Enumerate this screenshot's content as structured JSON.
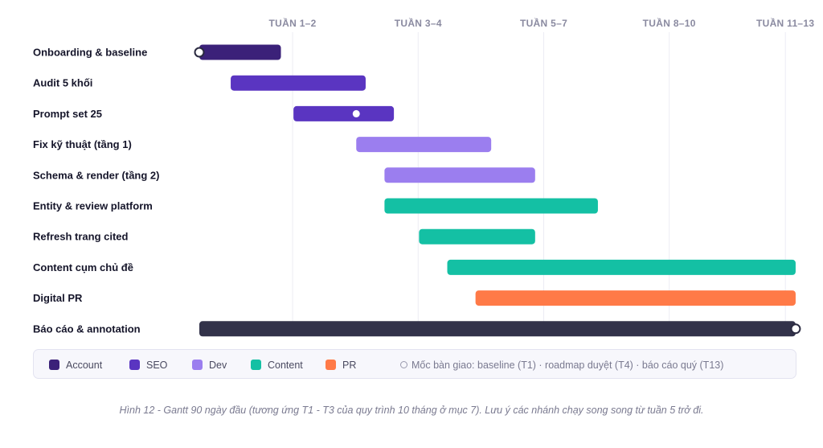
{
  "chart_data": {
    "type": "gantt",
    "x_unit": "week",
    "xlim": [
      0,
      13.2
    ],
    "ticks": [
      {
        "label": "TUẦN 1–2",
        "week": 1
      },
      {
        "label": "TUẦN 3–4",
        "week": 3
      },
      {
        "label": "TUẦN 5–7",
        "week": 5
      },
      {
        "label": "TUẦN 8–10",
        "week": 7
      },
      {
        "label": "TUẦN 11–13",
        "week": 8.85
      }
    ],
    "tasks": [
      {
        "label": "Onboarding & baseline",
        "start": 0,
        "end": 1.3,
        "category": "Account",
        "milestones": [
          {
            "week": 0,
            "style": "ring"
          }
        ]
      },
      {
        "label": "Audit 5 khối",
        "start": 0.5,
        "end": 2.65,
        "category": "SEO"
      },
      {
        "label": "Prompt set 25",
        "start": 1.5,
        "end": 3.1,
        "category": "SEO",
        "milestones": [
          {
            "week": 2.5,
            "style": "dot"
          }
        ]
      },
      {
        "label": "Fix kỹ thuật (tầng 1)",
        "start": 2.5,
        "end": 4.65,
        "category": "Dev"
      },
      {
        "label": "Schema & render (tầng 2)",
        "start": 2.95,
        "end": 5.35,
        "category": "Dev"
      },
      {
        "label": "Entity & review platform",
        "start": 2.95,
        "end": 6.35,
        "category": "Content"
      },
      {
        "label": "Refresh trang cited",
        "start": 3.5,
        "end": 5.35,
        "category": "Content"
      },
      {
        "label": "Content cụm chủ đề",
        "start": 3.95,
        "end": 9.5,
        "category": "Content"
      },
      {
        "label": "Digital PR",
        "start": 4.4,
        "end": 9.5,
        "category": "PR"
      },
      {
        "label": "Báo cáo & annotation",
        "start": 0,
        "end": 9.5,
        "category": "Report",
        "milestones": [
          {
            "week": 9.5,
            "style": "ring"
          }
        ]
      }
    ],
    "colors": {
      "Account": "#3b2179",
      "SEO": "#5a35c1",
      "Dev": "#9b7eef",
      "Content": "#14c0a4",
      "PR": "#ff7a47",
      "Report": "#32324a"
    }
  },
  "legend": {
    "items": [
      {
        "label": "Account",
        "color": "#3b2179"
      },
      {
        "label": "SEO",
        "color": "#5a35c1"
      },
      {
        "label": "Dev",
        "color": "#9b7eef"
      },
      {
        "label": "Content",
        "color": "#14c0a4"
      },
      {
        "label": "PR",
        "color": "#ff7a47"
      }
    ],
    "milestone_text": "Mốc bàn giao: baseline (T1) · roadmap duyệt (T4) · báo cáo quý (T13)"
  },
  "caption": "Hình 12 - Gantt 90 ngày đầu (tương ứng T1 - T3 của quy trình 10 tháng ở mục 7). Lưu ý các nhánh chạy song song từ tuần 5 trở đi."
}
